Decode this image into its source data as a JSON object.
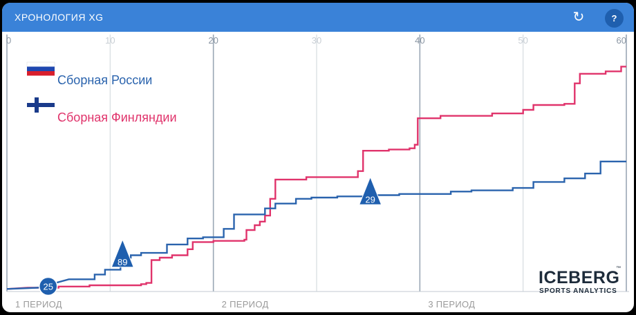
{
  "header": {
    "title": "ХРОНОЛОГИЯ XG",
    "refresh_icon": "refresh-icon",
    "help_label": "?"
  },
  "colors": {
    "russia": "#2a63ad",
    "finland": "#e0336b",
    "header": "#3a82d8",
    "grid_major": "#9aa7b5",
    "grid_minor": "#d6dbe0"
  },
  "chart_data": {
    "type": "line",
    "title": "ХРОНОЛОГИЯ XG",
    "xlim": [
      0,
      60
    ],
    "x_ticks": [
      0,
      10,
      20,
      30,
      40,
      50,
      60
    ],
    "ylim": [
      0,
      1
    ],
    "grid": true,
    "legend_placement": "top-left",
    "periods": [
      "1 ПЕРИОД",
      "2 ПЕРИОД",
      "3 ПЕРИОД"
    ],
    "series": [
      {
        "name": "Сборная России",
        "color": "#2a63ad",
        "flag": "russia",
        "points": [
          [
            0,
            0.005
          ],
          [
            3,
            0.01
          ],
          [
            6,
            0.045
          ],
          [
            8.5,
            0.045
          ],
          [
            8.5,
            0.065
          ],
          [
            9.5,
            0.065
          ],
          [
            9.5,
            0.085
          ],
          [
            11,
            0.085
          ],
          [
            11,
            0.135
          ],
          [
            12,
            0.135
          ],
          [
            12,
            0.145
          ],
          [
            13,
            0.145
          ],
          [
            13,
            0.155
          ],
          [
            15.5,
            0.155
          ],
          [
            15.5,
            0.19
          ],
          [
            17.5,
            0.19
          ],
          [
            17.5,
            0.215
          ],
          [
            19,
            0.215
          ],
          [
            19,
            0.22
          ],
          [
            21,
            0.22
          ],
          [
            21,
            0.255
          ],
          [
            22,
            0.255
          ],
          [
            22,
            0.315
          ],
          [
            25,
            0.315
          ],
          [
            25,
            0.34
          ],
          [
            26,
            0.34
          ],
          [
            26,
            0.36
          ],
          [
            28,
            0.36
          ],
          [
            28,
            0.38
          ],
          [
            29.5,
            0.38
          ],
          [
            29.5,
            0.385
          ],
          [
            32,
            0.385
          ],
          [
            32,
            0.39
          ],
          [
            35,
            0.39
          ],
          [
            35,
            0.395
          ],
          [
            38,
            0.395
          ],
          [
            38,
            0.4
          ],
          [
            43,
            0.4
          ],
          [
            43,
            0.41
          ],
          [
            45,
            0.41
          ],
          [
            45,
            0.415
          ],
          [
            49,
            0.415
          ],
          [
            49,
            0.425
          ],
          [
            51,
            0.425
          ],
          [
            51,
            0.45
          ],
          [
            54,
            0.45
          ],
          [
            54,
            0.465
          ],
          [
            56,
            0.465
          ],
          [
            56,
            0.485
          ],
          [
            57.5,
            0.485
          ],
          [
            57.5,
            0.535
          ],
          [
            60,
            0.535
          ]
        ]
      },
      {
        "name": "Сборная Финляндии",
        "color": "#e0336b",
        "flag": "finland",
        "points": [
          [
            0,
            0.005
          ],
          [
            2,
            0.01
          ],
          [
            5,
            0.01
          ],
          [
            5,
            0.015
          ],
          [
            8,
            0.015
          ],
          [
            8,
            0.02
          ],
          [
            13,
            0.02
          ],
          [
            13,
            0.025
          ],
          [
            13.5,
            0.025
          ],
          [
            13.5,
            0.03
          ],
          [
            14,
            0.03
          ],
          [
            14,
            0.125
          ],
          [
            14.8,
            0.125
          ],
          [
            14.8,
            0.135
          ],
          [
            16,
            0.135
          ],
          [
            16,
            0.145
          ],
          [
            17.5,
            0.145
          ],
          [
            17.5,
            0.17
          ],
          [
            18,
            0.17
          ],
          [
            18,
            0.2
          ],
          [
            20,
            0.2
          ],
          [
            20,
            0.205
          ],
          [
            23,
            0.205
          ],
          [
            23,
            0.21
          ],
          [
            23.2,
            0.21
          ],
          [
            23.2,
            0.25
          ],
          [
            24,
            0.25
          ],
          [
            24,
            0.27
          ],
          [
            24.5,
            0.27
          ],
          [
            24.5,
            0.285
          ],
          [
            25,
            0.285
          ],
          [
            25,
            0.31
          ],
          [
            25.5,
            0.31
          ],
          [
            25.5,
            0.38
          ],
          [
            26,
            0.38
          ],
          [
            26,
            0.46
          ],
          [
            29,
            0.46
          ],
          [
            29,
            0.47
          ],
          [
            34,
            0.47
          ],
          [
            34,
            0.495
          ],
          [
            34.5,
            0.495
          ],
          [
            34.5,
            0.58
          ],
          [
            37,
            0.58
          ],
          [
            37,
            0.585
          ],
          [
            39,
            0.585
          ],
          [
            39,
            0.59
          ],
          [
            39.5,
            0.59
          ],
          [
            39.5,
            0.605
          ],
          [
            39.8,
            0.605
          ],
          [
            39.8,
            0.715
          ],
          [
            42,
            0.715
          ],
          [
            42,
            0.725
          ],
          [
            47,
            0.725
          ],
          [
            47,
            0.735
          ],
          [
            50,
            0.735
          ],
          [
            50,
            0.75
          ],
          [
            51,
            0.75
          ],
          [
            51,
            0.77
          ],
          [
            54,
            0.77
          ],
          [
            54,
            0.775
          ],
          [
            55,
            0.775
          ],
          [
            55,
            0.86
          ],
          [
            55.5,
            0.86
          ],
          [
            55.5,
            0.9
          ],
          [
            58,
            0.9
          ],
          [
            58,
            0.91
          ],
          [
            59.5,
            0.91
          ],
          [
            59.5,
            0.93
          ],
          [
            60,
            0.93
          ]
        ]
      }
    ],
    "markers": [
      {
        "label": "25",
        "shape": "circle",
        "series": "Сборная России",
        "x": 4,
        "y": 0.01
      },
      {
        "label": "89",
        "shape": "triangle",
        "series": "Сборная России",
        "x": 11.2,
        "y": 0.13
      },
      {
        "label": "29",
        "shape": "triangle",
        "series": "Сборная России",
        "x": 35.2,
        "y": 0.39
      }
    ]
  },
  "logo": {
    "main": "ICEBERG",
    "sub": "SPORTS ANALYTICS",
    "tm": "™"
  }
}
